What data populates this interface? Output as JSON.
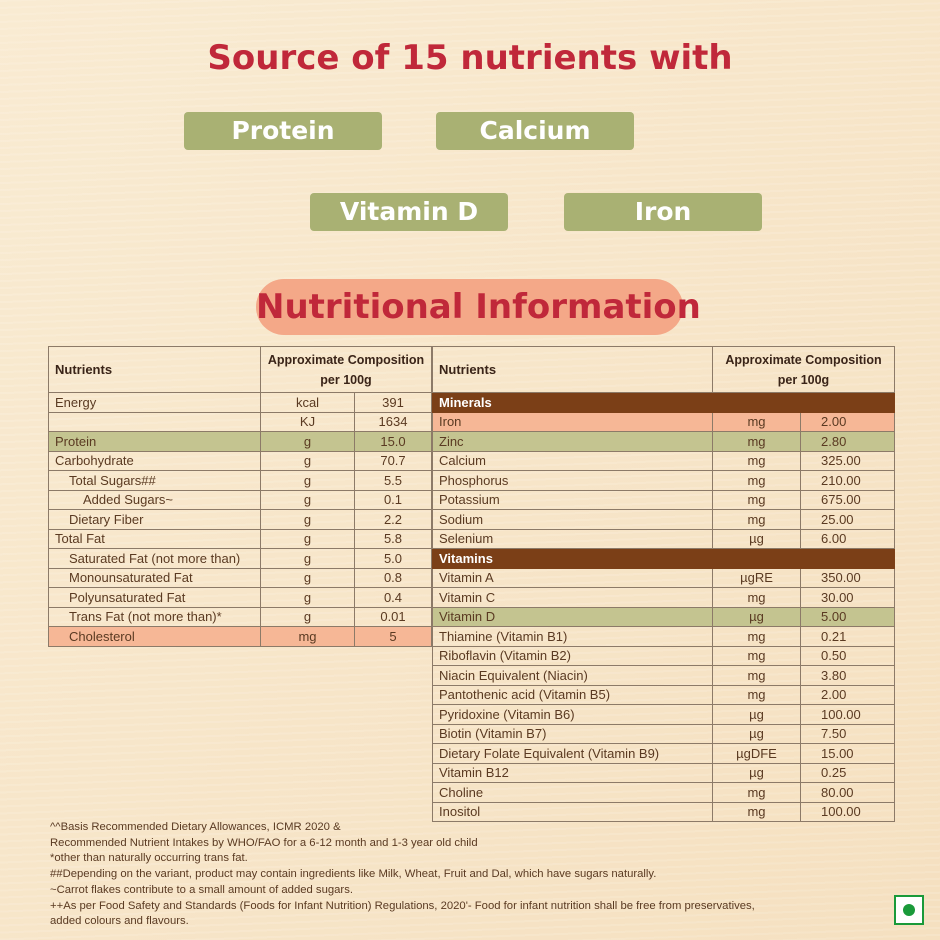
{
  "heading": "Source of 15 nutrients with",
  "highlights": [
    "Protein",
    "Calcium",
    "Vitamin D",
    "Iron"
  ],
  "section_title": "Nutritional Information",
  "colors": {
    "title": "#c0283a",
    "pill": "#a9b173",
    "category": "#7b3f17",
    "peach": "#f6b796",
    "green": "#c4c490"
  },
  "left_table": {
    "headers": [
      "Nutrients",
      "Approximate Composition per 100g"
    ],
    "rows": [
      {
        "name": "Energy",
        "unit": "kcal",
        "value": "391",
        "indent": 0
      },
      {
        "name": "",
        "unit": "KJ",
        "value": "1634",
        "indent": 0
      },
      {
        "name": "Protein",
        "unit": "g",
        "value": "15.0",
        "indent": 0,
        "hl": "green"
      },
      {
        "name": "Carbohydrate",
        "unit": "g",
        "value": "70.7",
        "indent": 0
      },
      {
        "name": "Total Sugars##",
        "unit": "g",
        "value": "5.5",
        "indent": 1
      },
      {
        "name": "Added Sugars~",
        "unit": "g",
        "value": "0.1",
        "indent": 2
      },
      {
        "name": "Dietary Fiber",
        "unit": "g",
        "value": "2.2",
        "indent": 1
      },
      {
        "name": "Total Fat",
        "unit": "g",
        "value": "5.8",
        "indent": 0
      },
      {
        "name": "Saturated Fat (not more than)",
        "unit": "g",
        "value": "5.0",
        "indent": 1
      },
      {
        "name": "Monounsaturated Fat",
        "unit": "g",
        "value": "0.8",
        "indent": 1
      },
      {
        "name": "Polyunsaturated Fat",
        "unit": "g",
        "value": "0.4",
        "indent": 1
      },
      {
        "name": "Trans Fat (not more than)*",
        "unit": "g",
        "value": "0.01",
        "indent": 1
      },
      {
        "name": "Cholesterol",
        "unit": "mg",
        "value": "5",
        "indent": 1,
        "hl": "peach"
      }
    ]
  },
  "right_table": {
    "headers": [
      "Nutrients",
      "Approximate Composition per 100g"
    ],
    "rows": [
      {
        "category": "Minerals"
      },
      {
        "name": "Iron",
        "unit": "mg",
        "value": "2.00",
        "hl": "peach"
      },
      {
        "name": "Zinc",
        "unit": "mg",
        "value": "2.80",
        "hl": "green"
      },
      {
        "name": "Calcium",
        "unit": "mg",
        "value": "325.00"
      },
      {
        "name": "Phosphorus",
        "unit": "mg",
        "value": "210.00"
      },
      {
        "name": "Potassium",
        "unit": "mg",
        "value": "675.00"
      },
      {
        "name": "Sodium",
        "unit": "mg",
        "value": "25.00"
      },
      {
        "name": "Selenium",
        "unit": "µg",
        "value": "6.00"
      },
      {
        "category": "Vitamins"
      },
      {
        "name": "Vitamin A",
        "unit": "µgRE",
        "value": "350.00"
      },
      {
        "name": "Vitamin C",
        "unit": "mg",
        "value": "30.00"
      },
      {
        "name": "Vitamin D",
        "unit": "µg",
        "value": "5.00",
        "hl": "green"
      },
      {
        "name": "Thiamine (Vitamin B1)",
        "unit": "mg",
        "value": "0.21"
      },
      {
        "name": "Riboflavin (Vitamin B2)",
        "unit": "mg",
        "value": "0.50"
      },
      {
        "name": "Niacin Equivalent (Niacin)",
        "unit": "mg",
        "value": "3.80"
      },
      {
        "name": "Pantothenic acid (Vitamin B5)",
        "unit": "mg",
        "value": "2.00"
      },
      {
        "name": "Pyridoxine (Vitamin B6)",
        "unit": "µg",
        "value": "100.00"
      },
      {
        "name": "Biotin (Vitamin B7)",
        "unit": "µg",
        "value": "7.50"
      },
      {
        "name": "Dietary Folate Equivalent (Vitamin B9)",
        "unit": "µgDFE",
        "value": "15.00"
      },
      {
        "name": "Vitamin B12",
        "unit": "µg",
        "value": "0.25"
      },
      {
        "name": "Choline",
        "unit": "mg",
        "value": "80.00"
      },
      {
        "name": "Inositol",
        "unit": "mg",
        "value": "100.00"
      }
    ]
  },
  "footnotes": [
    "^^Basis Recommended Dietary Allowances, ICMR 2020 &",
    "Recommended Nutrient Intakes by WHO/FAO for a 6-12 month and 1-3  year old child",
    "*other than naturally occurring trans fat.",
    "##Depending on the variant, product may contain ingredients like Milk, Wheat, Fruit and Dal, which have sugars naturally.",
    "~Carrot flakes contribute to a small amount of added sugars.",
    "++As per Food Safety and Standards (Foods for Infant Nutrition) Regulations, 2020'- Food for infant nutrition shall be free from preservatives,",
    "added colours and flavours."
  ],
  "veg_mark": "vegetarian-symbol"
}
